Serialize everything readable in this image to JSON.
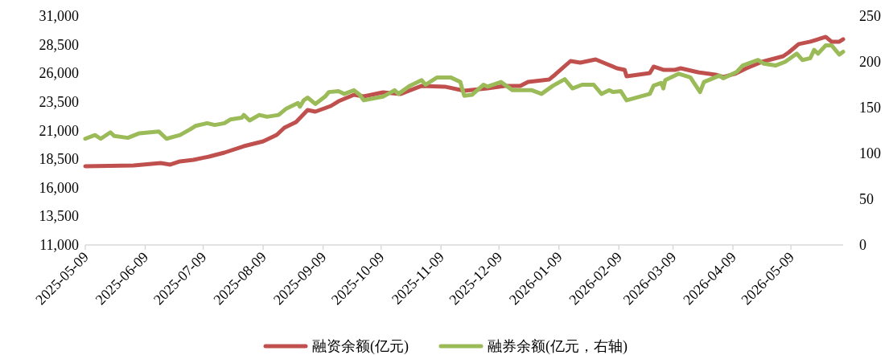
{
  "chart_data": {
    "type": "line",
    "legend": "bottom",
    "xlim": [
      "2025-05-09",
      "2026-06-05"
    ],
    "xticks": [
      "2025-05-09",
      "2025-06-09",
      "2025-07-09",
      "2025-08-09",
      "2025-09-09",
      "2025-10-09",
      "2025-11-09",
      "2025-12-09",
      "2026-01-09",
      "2026-02-09",
      "2026-03-09",
      "2026-04-09",
      "2026-05-09"
    ],
    "ylim": [
      11000,
      31000
    ],
    "yticks": [
      {
        "value": 11000,
        "label": "11,000"
      },
      {
        "value": 13500,
        "label": "13,500"
      },
      {
        "value": 16000,
        "label": "16,000"
      },
      {
        "value": 18500,
        "label": "18,500"
      },
      {
        "value": 21000,
        "label": "21,000"
      },
      {
        "value": 23500,
        "label": "23,500"
      },
      {
        "value": 26000,
        "label": "26,000"
      },
      {
        "value": 28500,
        "label": "28,500"
      },
      {
        "value": 31000,
        "label": "31,000"
      }
    ],
    "y2lim": [
      0,
      250
    ],
    "y2ticks": [
      0,
      50,
      100,
      150,
      200,
      250
    ],
    "series": [
      {
        "name": "融资余额(亿元)",
        "color": "#c0504d",
        "x": [
          "2025-05-09",
          "2025-06-03",
          "2025-06-17",
          "2025-06-22",
          "2025-06-27",
          "2025-07-04",
          "2025-07-12",
          "2025-07-20",
          "2025-07-30",
          "2025-08-09",
          "2025-08-16",
          "2025-08-20",
          "2025-08-26",
          "2025-09-01",
          "2025-09-05",
          "2025-09-13",
          "2025-09-17",
          "2025-09-25",
          "2025-09-30",
          "2025-10-10",
          "2025-10-19",
          "2025-10-30",
          "2025-11-11",
          "2025-11-21",
          "2025-12-03",
          "2025-12-12",
          "2025-12-20",
          "2025-12-24",
          "2026-01-04",
          "2026-01-07",
          "2026-01-15",
          "2026-01-20",
          "2026-01-28",
          "2026-02-02",
          "2026-02-08",
          "2026-02-12",
          "2026-02-13",
          "2026-02-25",
          "2026-02-27",
          "2026-03-04",
          "2026-03-10",
          "2026-03-13",
          "2026-03-22",
          "2026-03-31",
          "2026-04-04",
          "2026-04-10",
          "2026-04-16",
          "2026-04-24",
          "2026-05-05",
          "2026-05-08",
          "2026-05-13",
          "2026-05-19",
          "2026-05-27",
          "2026-05-30",
          "2026-06-03",
          "2026-06-05"
        ],
        "values": [
          17880,
          17950,
          18160,
          18020,
          18300,
          18440,
          18720,
          19070,
          19630,
          20050,
          20610,
          21250,
          21740,
          22790,
          22650,
          23140,
          23560,
          24120,
          23980,
          24330,
          24190,
          24900,
          24830,
          24470,
          24690,
          24900,
          24900,
          25250,
          25460,
          25880,
          27070,
          26930,
          27210,
          26860,
          26440,
          26300,
          25740,
          26020,
          26580,
          26300,
          26300,
          26440,
          26090,
          25880,
          25670,
          25950,
          26440,
          27000,
          27490,
          27840,
          28550,
          28760,
          29180,
          28760,
          28760,
          28970
        ]
      },
      {
        "name": "融券余额(亿元，右轴)",
        "color": "#9bbb59",
        "axis": "y2",
        "x": [
          "2025-05-09",
          "2025-05-14",
          "2025-05-17",
          "2025-05-22",
          "2025-05-24",
          "2025-05-31",
          "2025-06-06",
          "2025-06-16",
          "2025-06-20",
          "2025-06-27",
          "2025-07-02",
          "2025-07-05",
          "2025-07-11",
          "2025-07-15",
          "2025-07-20",
          "2025-07-23",
          "2025-07-29",
          "2025-07-30",
          "2025-08-02",
          "2025-08-07",
          "2025-08-11",
          "2025-08-17",
          "2025-08-21",
          "2025-08-27",
          "2025-08-28",
          "2025-08-30",
          "2025-09-01",
          "2025-09-05",
          "2025-09-10",
          "2025-09-12",
          "2025-09-17",
          "2025-09-20",
          "2025-09-25",
          "2025-09-28",
          "2025-09-30",
          "2025-10-10",
          "2025-10-16",
          "2025-10-18",
          "2025-10-24",
          "2025-10-30",
          "2025-11-01",
          "2025-11-07",
          "2025-11-14",
          "2025-11-19",
          "2025-11-21",
          "2025-11-25",
          "2025-12-01",
          "2025-12-03",
          "2025-12-10",
          "2025-12-16",
          "2025-12-26",
          "2025-12-31",
          "2026-01-06",
          "2026-01-12",
          "2026-01-16",
          "2026-01-21",
          "2026-01-27",
          "2026-01-31",
          "2026-02-04",
          "2026-02-06",
          "2026-02-10",
          "2026-02-13",
          "2026-02-25",
          "2026-02-27",
          "2026-03-03",
          "2026-03-04",
          "2026-03-05",
          "2026-03-12",
          "2026-03-18",
          "2026-03-23",
          "2026-03-25",
          "2026-04-02",
          "2026-04-04",
          "2026-04-11",
          "2026-04-14",
          "2026-04-22",
          "2026-04-25",
          "2026-05-01",
          "2026-05-06",
          "2026-05-12",
          "2026-05-15",
          "2026-05-19",
          "2026-05-21",
          "2026-05-23",
          "2026-05-27",
          "2026-05-30",
          "2026-06-03",
          "2026-06-05"
        ],
        "values": [
          116,
          120,
          116,
          123,
          119,
          117,
          122,
          124,
          116,
          120,
          126,
          130,
          133,
          131,
          133,
          137,
          139,
          142,
          136,
          142,
          140,
          142,
          149,
          155,
          151,
          158,
          161,
          154,
          162,
          167,
          168,
          165,
          169,
          164,
          158,
          162,
          169,
          165,
          174,
          180,
          175,
          183,
          183,
          178,
          163,
          164,
          175,
          173,
          178,
          169,
          169,
          165,
          174,
          181,
          171,
          175,
          175,
          165,
          169,
          167,
          168,
          158,
          165,
          174,
          177,
          171,
          180,
          187,
          183,
          167,
          178,
          185,
          182,
          189,
          196,
          202,
          198,
          196,
          200,
          209,
          202,
          204,
          213,
          209,
          218,
          218,
          208,
          211
        ]
      }
    ]
  }
}
